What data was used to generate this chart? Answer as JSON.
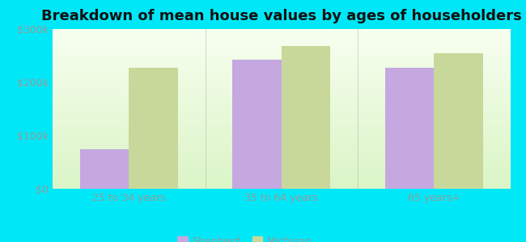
{
  "title": "Breakdown of mean house values by ages of householders",
  "categories": [
    "25 to 34 years",
    "35 to 64 years",
    "65 years+"
  ],
  "shepherd_values": [
    75000,
    243000,
    228000
  ],
  "michigan_values": [
    228000,
    268000,
    255000
  ],
  "shepherd_color": "#c5a8e0",
  "michigan_color": "#c8d89a",
  "ylim": [
    0,
    300000
  ],
  "yticks": [
    0,
    100000,
    200000,
    300000
  ],
  "ytick_labels": [
    "$0",
    "$100k",
    "$200k",
    "$300k"
  ],
  "plot_bg_top": "#f8fef0",
  "plot_bg_bottom": "#e8f8d8",
  "bar_width": 0.32,
  "legend_labels": [
    "Shepherd",
    "Michigan"
  ],
  "title_fontsize": 13,
  "tick_fontsize": 9,
  "legend_fontsize": 9,
  "outer_bg": "#00e8f8",
  "tick_color": "#999999",
  "title_color": "#111111"
}
